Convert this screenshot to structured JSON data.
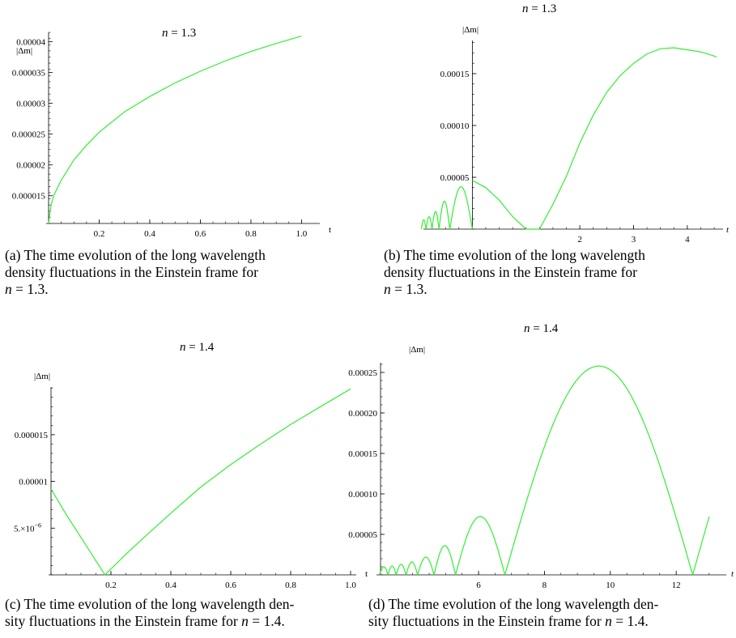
{
  "panels": [
    {
      "title_var": "n",
      "title_rest": " = 1.3",
      "caption_lines": [
        "(a)  The time evolution of the long wavelength",
        "density fluctuations in the Einstein frame for"
      ],
      "caption_var": "n",
      "caption_end": " = 1.3.",
      "yaxis_label": "|Δm|",
      "xaxis_label": "t",
      "xticks": [
        "0.2",
        "0.4",
        "0.6",
        "0.8",
        "1.0"
      ],
      "yticks": [
        "0.000015",
        "0.00002",
        "0.000025",
        "0.00003",
        "0.000035",
        "0.00004"
      ]
    },
    {
      "title_var": "n",
      "title_rest": " = 1.3",
      "caption_lines": [
        "(b)  The time evolution of the long wavelength",
        "density fluctuations in the Einstein frame for"
      ],
      "caption_var": "n",
      "caption_end": " = 1.3.",
      "yaxis_label": "|Δm|",
      "xaxis_label": "t",
      "xticks": [
        "2",
        "3",
        "4"
      ],
      "yticks": [
        "0.00005",
        "0.00010",
        "0.00015"
      ]
    },
    {
      "title_var": "n",
      "title_rest": " = 1.4",
      "caption_lines": [
        "(c)  The time evolution of the long wavelength den-",
        "sity fluctuations in the Einstein frame for"
      ],
      "caption_var": "n",
      "caption_end": " = 1.4.",
      "yaxis_label": "|Δm|",
      "xaxis_label": "t",
      "xticks": [
        "0.2",
        "0.4",
        "0.6",
        "0.8",
        "1.0"
      ],
      "yticks": [
        "5.×10",
        "0.00001",
        "0.000015"
      ],
      "ytick_exponent": "−6"
    },
    {
      "title_var": "n",
      "title_rest": " = 1.4",
      "caption_lines": [
        "(d)  The time evolution of the long wavelength den-",
        "sity fluctuations in the Einstein frame for"
      ],
      "caption_var": "n",
      "caption_end": " = 1.4.",
      "yaxis_label": "|Δm|",
      "xaxis_label": "t",
      "xticks": [
        "6",
        "8",
        "10",
        "12"
      ],
      "yticks": [
        "0.00005",
        "0.00010",
        "0.00015",
        "0.00020",
        "0.00025"
      ]
    }
  ],
  "chart_data": [
    {
      "type": "line",
      "x": [
        0.0,
        0.01,
        0.02,
        0.05,
        0.1,
        0.15,
        0.2,
        0.3,
        0.4,
        0.5,
        0.6,
        0.7,
        0.8,
        0.9,
        1.0
      ],
      "y": [
        1.05e-05,
        1.35e-05,
        1.5e-05,
        1.75e-05,
        2.08e-05,
        2.32e-05,
        2.53e-05,
        2.86e-05,
        3.11e-05,
        3.33e-05,
        3.52e-05,
        3.69e-05,
        3.84e-05,
        3.97e-05,
        4.09e-05
      ],
      "xlim": [
        0,
        1.05
      ],
      "ylim": [
        1.05e-05,
        4.15e-05
      ],
      "color": "#33ee33"
    },
    {
      "type": "line",
      "x": [
        0.0,
        0.25,
        0.5,
        0.75,
        1.0,
        1.25,
        1.5,
        1.75,
        2.0,
        2.25,
        2.5,
        2.75,
        3.0,
        3.25,
        3.5,
        3.75,
        4.0,
        4.25,
        4.5,
        4.55
      ],
      "y": [
        4.7e-05,
        4e-05,
        2.8e-05,
        1.2e-05,
        0.0,
        0.0,
        2.4e-05,
        5.1e-05,
        8.3e-05,
        0.00011,
        0.000132,
        0.000148,
        0.00016,
        0.000169,
        0.000174,
        0.000175,
        0.000173,
        0.000171,
        0.000167,
        0.000166
      ],
      "pre_oscillations": [
        {
          "x_start": -0.95,
          "x_end": -0.86,
          "peak": 9e-06
        },
        {
          "x_start": -0.86,
          "x_end": -0.75,
          "peak": 1.2e-05
        },
        {
          "x_start": -0.75,
          "x_end": -0.62,
          "peak": 1.7e-05
        },
        {
          "x_start": -0.62,
          "x_end": -0.42,
          "peak": 2.7e-05
        },
        {
          "x_start": -0.42,
          "x_end": 0.0,
          "peak": 4.1e-05
        }
      ],
      "xlim": [
        -1.0,
        4.65
      ],
      "ylim": [
        0,
        0.000182
      ],
      "color": "#33ee33"
    },
    {
      "type": "line",
      "x": [
        0.0,
        0.05,
        0.1,
        0.15,
        0.18,
        0.25,
        0.3,
        0.4,
        0.5,
        0.6,
        0.7,
        0.8,
        0.9,
        1.0
      ],
      "y": [
        9.2e-06,
        6.5e-06,
        4e-06,
        1.5e-06,
        0.0,
        2.2e-06,
        3.7e-06,
        6.6e-06,
        9.4e-06,
        1.18e-05,
        1.4e-05,
        1.61e-05,
        1.8e-05,
        1.99e-05
      ],
      "xlim": [
        0,
        1.0
      ],
      "ylim": [
        0,
        2.01e-05
      ],
      "color": "#33ee33"
    },
    {
      "type": "line",
      "arches": [
        {
          "x_start": 3.0,
          "x_end": 3.25,
          "peak": 1e-05
        },
        {
          "x_start": 3.25,
          "x_end": 3.5,
          "peak": 1.1e-05
        },
        {
          "x_start": 3.5,
          "x_end": 3.8,
          "peak": 1.3e-05
        },
        {
          "x_start": 3.8,
          "x_end": 4.15,
          "peak": 1.6e-05
        },
        {
          "x_start": 4.15,
          "x_end": 4.65,
          "peak": 2.2e-05
        },
        {
          "x_start": 4.65,
          "x_end": 5.3,
          "peak": 3.6e-05
        },
        {
          "x_start": 5.3,
          "x_end": 6.8,
          "peak": 7.2e-05
        },
        {
          "x_start": 6.8,
          "x_end": 12.5,
          "peak": 0.000258
        }
      ],
      "tail": {
        "x": [
          12.5,
          13.0
        ],
        "y": [
          0.0,
          7.2e-05
        ]
      },
      "xlim": [
        3.0,
        13.2
      ],
      "ylim": [
        0,
        0.000262
      ],
      "color": "#33ee33"
    }
  ]
}
